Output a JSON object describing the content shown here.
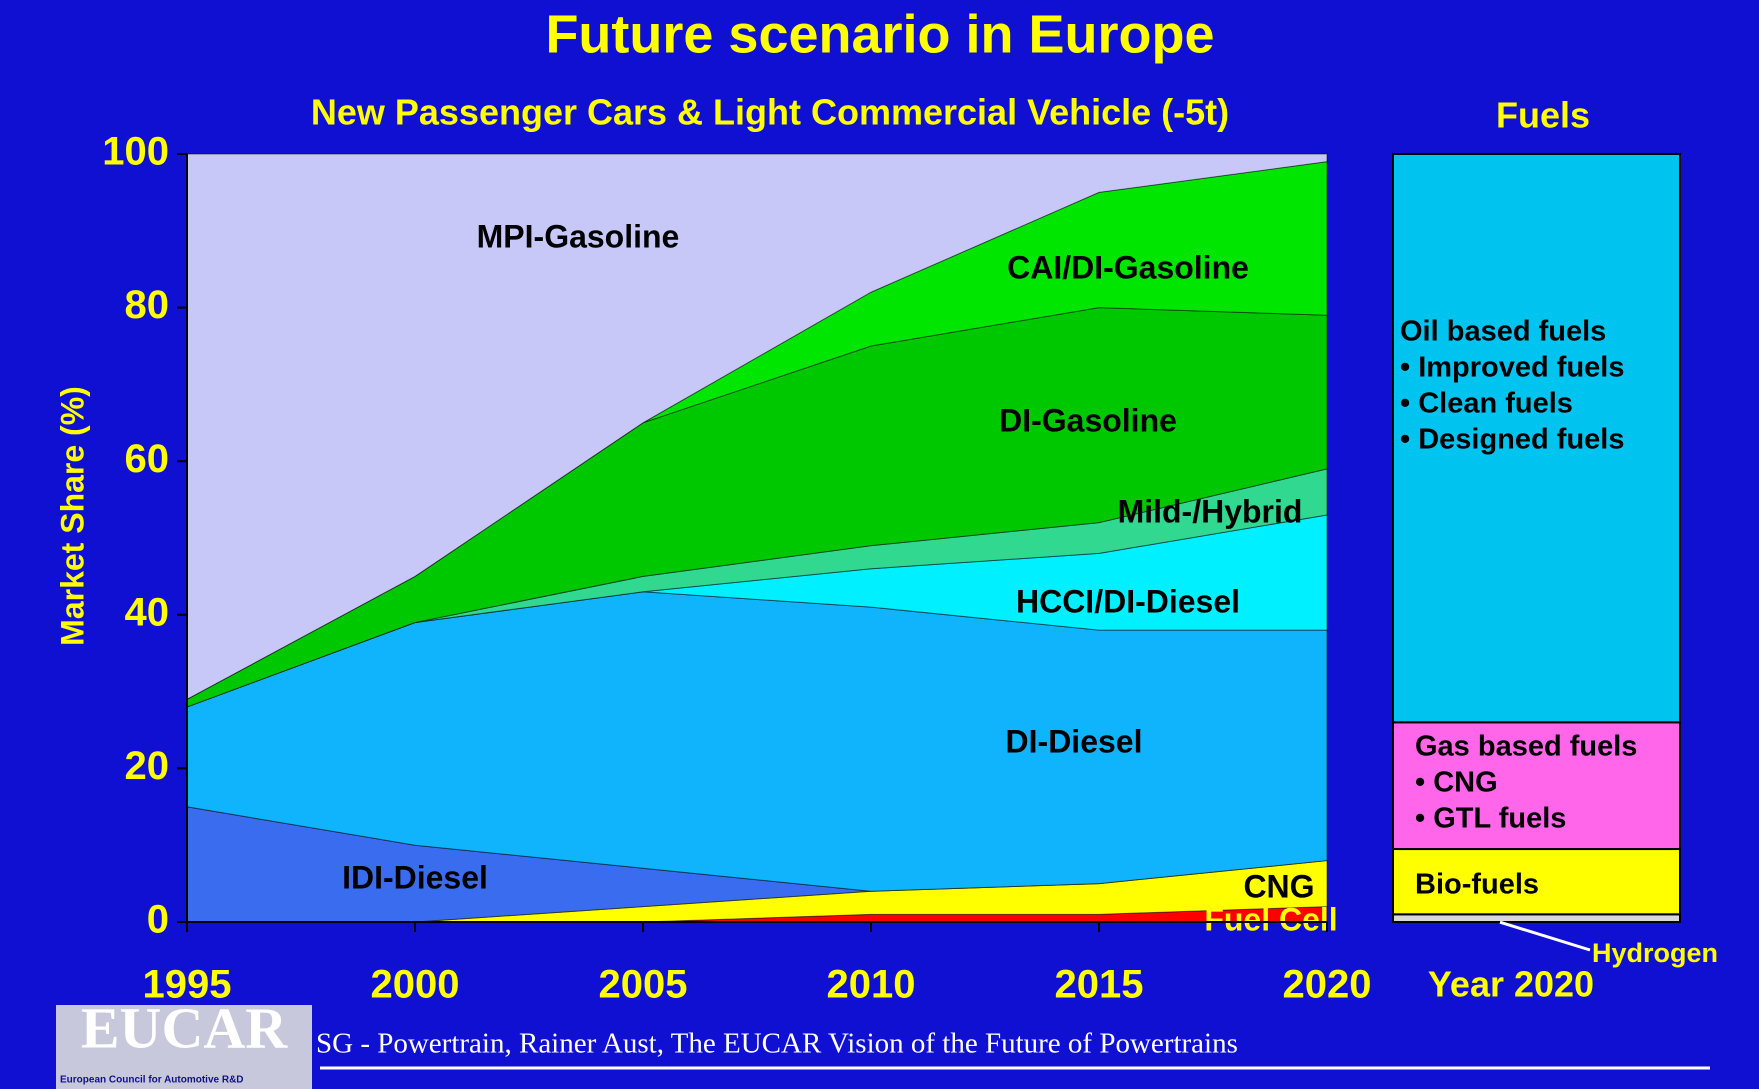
{
  "title": "Future scenario in Europe",
  "footer": {
    "logo": "EUCAR",
    "logo_subtitle": "European Council for Automotive R&D",
    "text": "SG - Powertrain, Rainer Aust, The EUCAR Vision of the Future of Powertrains"
  },
  "chart_data": [
    {
      "type": "area",
      "stacked": true,
      "title": "New Passenger Cars & Light Commercial Vehicle (-5t)",
      "y_label": "Market Share (%)",
      "x": [
        1995,
        2000,
        2005,
        2010,
        2015,
        2020
      ],
      "xlim": [
        1995,
        2020
      ],
      "xticks": [
        1995,
        2000,
        2005,
        2010,
        2015,
        2020
      ],
      "ylim": [
        0,
        100
      ],
      "yticks": [
        0,
        20,
        40,
        60,
        80,
        100
      ],
      "series": [
        {
          "name": "Fuel Cell",
          "color": "#ff0000",
          "values": [
            0,
            0,
            0,
            1,
            1,
            2
          ]
        },
        {
          "name": "CNG",
          "color": "#ffff00",
          "values": [
            0,
            0,
            2,
            3,
            4,
            6
          ]
        },
        {
          "name": "IDI-Diesel",
          "color": "#3a6cf0",
          "values": [
            15,
            10,
            5,
            0,
            0,
            0
          ]
        },
        {
          "name": "DI-Diesel",
          "color": "#10b4fc",
          "values": [
            13,
            29,
            36,
            37,
            33,
            30
          ]
        },
        {
          "name": "HCCI/DI-Diesel",
          "color": "#00f0ff",
          "values": [
            0,
            0,
            0,
            5,
            10,
            15
          ]
        },
        {
          "name": "Mild-/Hybrid",
          "color": "#30d890",
          "values": [
            0,
            0,
            2,
            3,
            4,
            6
          ]
        },
        {
          "name": "DI-Gasoline",
          "color": "#00c800",
          "values": [
            1,
            6,
            20,
            26,
            28,
            20
          ]
        },
        {
          "name": "CAI/DI-Gasoline",
          "color": "#00e600",
          "values": [
            0,
            0,
            0,
            7,
            15,
            20
          ]
        },
        {
          "name": "MPI-Gasoline",
          "color": "#c8c8f8",
          "values": [
            71,
            55,
            35,
            18,
            5,
            1
          ]
        }
      ]
    },
    {
      "type": "bar",
      "stacked": true,
      "title": "Fuels",
      "categories": [
        "Year 2020"
      ],
      "ylim": [
        0,
        100
      ],
      "series": [
        {
          "name": "Hydrogen",
          "color": "#d8d8d8",
          "values": [
            1
          ]
        },
        {
          "name": "Bio-fuels",
          "color": "#ffff00",
          "values": [
            8.5
          ]
        },
        {
          "name": "Gas based fuels",
          "color": "#ff66ea",
          "values": [
            16.5
          ],
          "notes": [
            "• CNG",
            "• GTL fuels"
          ]
        },
        {
          "name": "Oil based fuels",
          "color": "#00c4f0",
          "values": [
            74
          ],
          "notes": [
            "• Improved fuels",
            "• Clean fuels",
            "• Designed fuels"
          ]
        }
      ]
    }
  ]
}
